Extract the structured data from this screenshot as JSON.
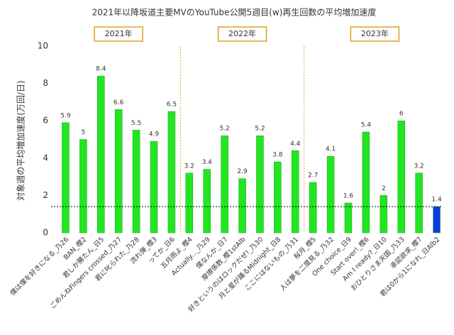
{
  "chart_data": {
    "type": "bar",
    "title": "2021年以降坂道主要MVのYouTube公開5週目(w)再生回数の平均増加速度",
    "y_label": "対象週の平均増加速度(万回/日)",
    "annotations": [
      "2021年",
      "2022年",
      "2023年"
    ],
    "categories": [
      "僕は僕を好きになる_乃26",
      "BAN_櫻2",
      "君しか勝たん_日5",
      "ごめんねFingers crossed_乃27",
      "君に叱られた_乃28",
      "流れ弾_櫻3",
      "ってか_日6",
      "五月雨よ_櫻4",
      "Actually..._乃29",
      "僕なんか_日7",
      "摩擦係数_櫻1stAlb",
      "好きというのはロックだぜ!_乃30",
      "月と星が踊るMidnight_日8",
      "ここにはないもの_乃31",
      "桜月_櫻5",
      "人は夢を二度見る_乃32",
      "One choice_日9",
      "Start over!_櫻6",
      "Am I ready?_日10",
      "おひとりさま天国_乃33",
      "承認欲求_櫻7",
      "君は0から1になれ_日Alb2"
    ],
    "values": [
      5.9,
      5,
      8.4,
      6.6,
      5.5,
      4.9,
      6.5,
      3.2,
      3.4,
      5.2,
      2.9,
      5.2,
      3.8,
      4.4,
      2.7,
      4.1,
      1.6,
      5.4,
      2,
      6,
      3.2,
      1.4
    ],
    "colors": [
      "#22e622",
      "#22e622",
      "#22e622",
      "#22e622",
      "#22e622",
      "#22e622",
      "#22e622",
      "#22e622",
      "#22e622",
      "#22e622",
      "#22e622",
      "#22e622",
      "#22e622",
      "#22e622",
      "#22e622",
      "#22e622",
      "#22e622",
      "#22e622",
      "#22e622",
      "#22e622",
      "#22e622",
      "#0a3de0"
    ],
    "reference_line": 1.4,
    "ylim": [
      0,
      10
    ],
    "yticks": [
      0,
      2,
      4,
      6,
      8,
      10
    ],
    "grid": false
  }
}
